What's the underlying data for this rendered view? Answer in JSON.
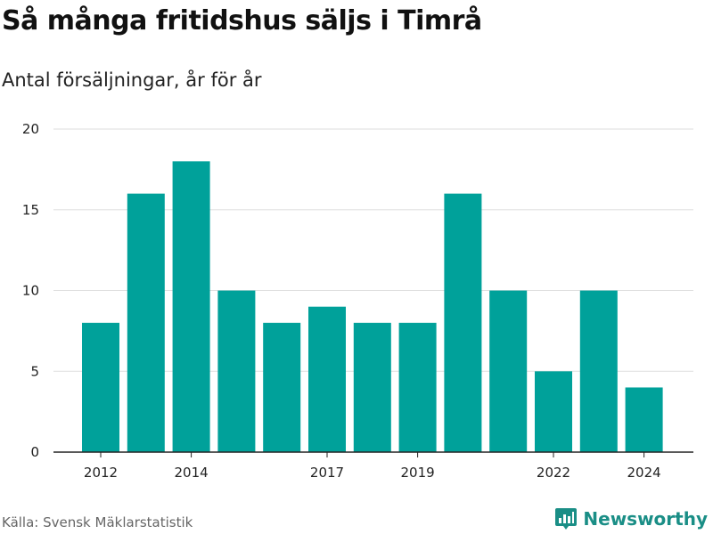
{
  "title": "Så många fritidshus säljs i Timrå",
  "subtitle": "Antal försäljningar, år för år",
  "source": "Källa: Svensk Mäklarstatistik",
  "brand": {
    "name": "Newsworthy",
    "icon": "newsworthy-logo-icon",
    "color": "#1a8e86"
  },
  "colors": {
    "bar": "#00a19a",
    "grid": "#dddddd",
    "axis": "#222222"
  },
  "chart_data": {
    "type": "bar",
    "title": "Så många fritidshus säljs i Timrå",
    "subtitle": "Antal försäljningar, år för år",
    "xlabel": "",
    "ylabel": "",
    "categories": [
      2012,
      2013,
      2014,
      2015,
      2016,
      2017,
      2018,
      2019,
      2020,
      2021,
      2022,
      2023,
      2024
    ],
    "values": [
      8,
      16,
      18,
      10,
      8,
      9,
      8,
      8,
      16,
      10,
      5,
      10,
      4
    ],
    "x_tick_labels": [
      "2012",
      "2014",
      "2017",
      "2019",
      "2022",
      "2024"
    ],
    "y_ticks": [
      0,
      5,
      10,
      15,
      20
    ],
    "ylim": [
      0,
      20
    ],
    "grid": true,
    "legend": "none"
  }
}
